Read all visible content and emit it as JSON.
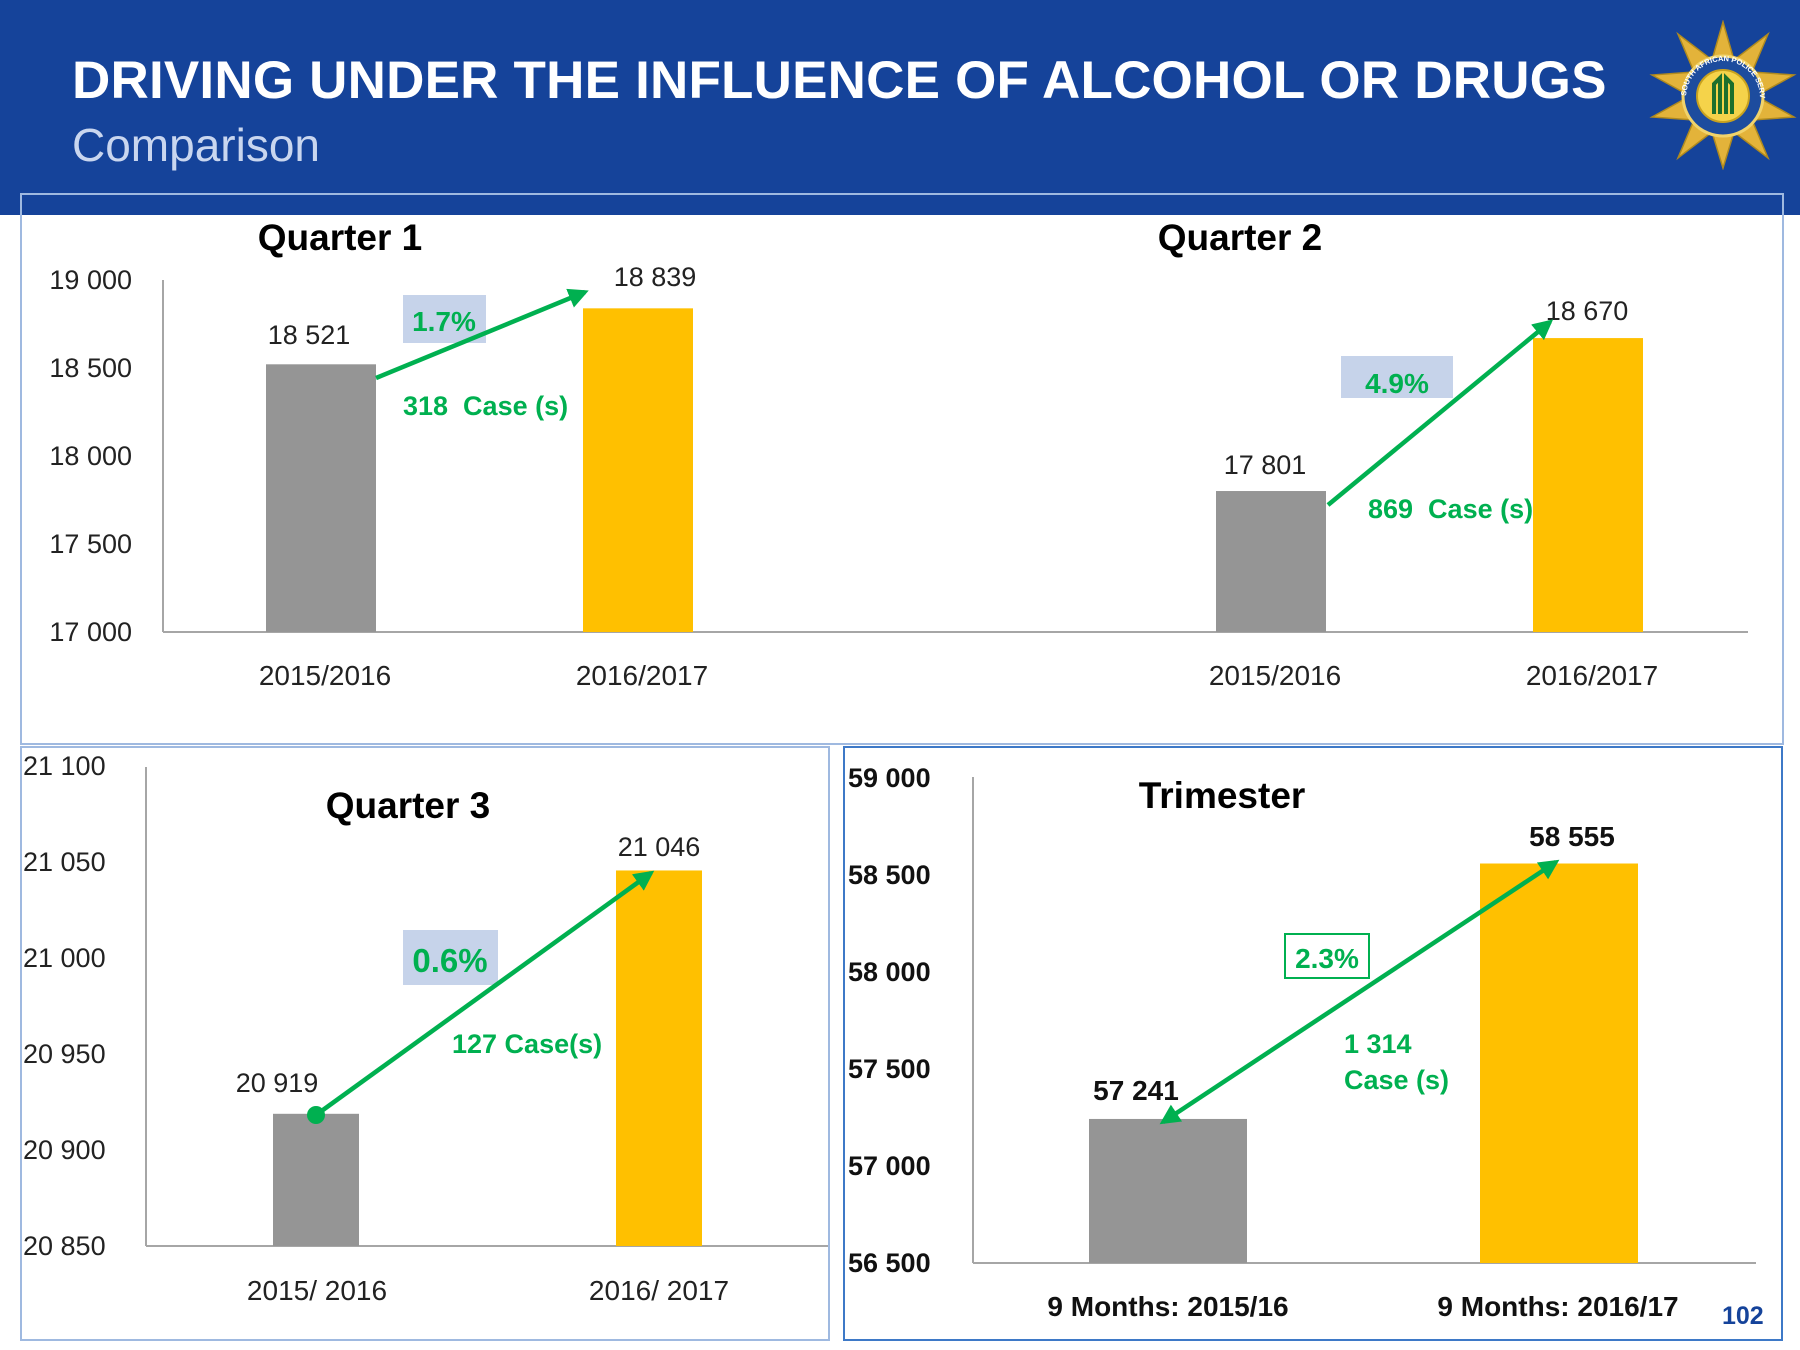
{
  "header": {
    "title": "DRIVING UNDER THE INFLUENCE OF ALCOHOL OR DRUGS",
    "subtitle": "Comparison",
    "badge_text": "SOUTH AFRICAN POLICE SERVICE"
  },
  "page_number": "102",
  "colors": {
    "header": "#15439a",
    "prior": "#959595",
    "current": "#ffc000",
    "arrow": "#00b050",
    "pct_box": "#c6d3ea"
  },
  "chart_data": [
    {
      "type": "bar",
      "title": "Quarter 1",
      "categories": [
        "2015/2016",
        "2016/2017"
      ],
      "values": [
        18521,
        18839
      ],
      "value_labels": [
        "18 521",
        "18 839"
      ],
      "ylim": [
        17000,
        19000
      ],
      "yticks": [
        17000,
        17500,
        18000,
        18500,
        19000
      ],
      "ytick_labels": [
        "17 000",
        "17 500",
        "18 000",
        "18 500",
        "19 000"
      ],
      "annotations": {
        "percent": "1.7%",
        "cases": "318  Case (s)"
      }
    },
    {
      "type": "bar",
      "title": "Quarter 2",
      "categories": [
        "2015/2016",
        "2016/2017"
      ],
      "values": [
        17801,
        18670
      ],
      "value_labels": [
        "17 801",
        "18 670"
      ],
      "ylim": [
        17000,
        19000
      ],
      "annotations": {
        "percent": "4.9%",
        "cases": "869  Case (s)"
      }
    },
    {
      "type": "bar",
      "title": "Quarter 3",
      "categories": [
        "2015/ 2016",
        "2016/ 2017"
      ],
      "values": [
        20919,
        21046
      ],
      "value_labels": [
        "20 919",
        "21 046"
      ],
      "ylim": [
        20850,
        21100
      ],
      "yticks": [
        20850,
        20900,
        20950,
        21000,
        21050,
        21100
      ],
      "ytick_labels": [
        "20 850",
        "20 900",
        "20 950",
        "21 000",
        "21 050",
        "21 100"
      ],
      "annotations": {
        "percent": "0.6%",
        "cases": "127 Case(s)"
      }
    },
    {
      "type": "bar",
      "title": "Trimester",
      "categories": [
        "9 Months: 2015/16",
        "9 Months: 2016/17"
      ],
      "values": [
        57241,
        58555
      ],
      "value_labels": [
        "57 241",
        "58 555"
      ],
      "ylim": [
        56500,
        59000
      ],
      "yticks": [
        56500,
        57000,
        57500,
        58000,
        58500,
        59000
      ],
      "ytick_labels": [
        "56 500",
        "57 000",
        "57 500",
        "58 000",
        "58 500",
        "59 000"
      ],
      "annotations": {
        "percent": "2.3%",
        "cases_line1": "1 314",
        "cases_line2": "Case (s)"
      }
    }
  ]
}
